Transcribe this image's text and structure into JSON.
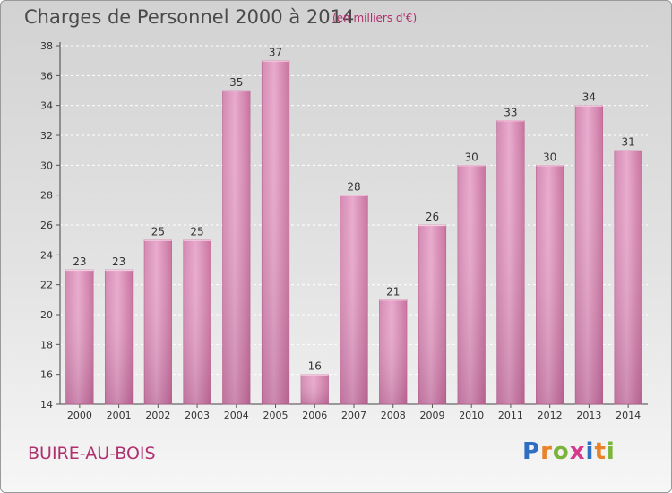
{
  "header": {
    "title": "Charges de Personnel 2000 à 2014",
    "subtitle": "(en milliers d'€)"
  },
  "footer": {
    "commune": "BUIRE-AU-BOIS"
  },
  "logo": {
    "letters": [
      "P",
      "r",
      "o",
      "x",
      "i",
      "t",
      "i"
    ],
    "colors": [
      "#2f6fc2",
      "#e8832a",
      "#7ab43a",
      "#d63a8c",
      "#2f6fc2",
      "#e8832a",
      "#7ab43a"
    ]
  },
  "chart_data": {
    "type": "bar",
    "title": "Charges de Personnel 2000 à 2014",
    "subtitle": "(en milliers d'€)",
    "categories": [
      "2000",
      "2001",
      "2002",
      "2003",
      "2004",
      "2005",
      "2006",
      "2007",
      "2008",
      "2009",
      "2010",
      "2011",
      "2012",
      "2013",
      "2014"
    ],
    "values": [
      23,
      23,
      25,
      25,
      35,
      37,
      16,
      28,
      21,
      26,
      30,
      33,
      30,
      34,
      31
    ],
    "ylim": [
      14,
      38
    ],
    "yticks": [
      "14",
      "16",
      "18",
      "20",
      "22",
      "24",
      "26",
      "28",
      "30",
      "32",
      "34",
      "36",
      "38"
    ],
    "grid": true,
    "bar_color": "#cc6ea0",
    "xlabel": "",
    "ylabel": ""
  }
}
